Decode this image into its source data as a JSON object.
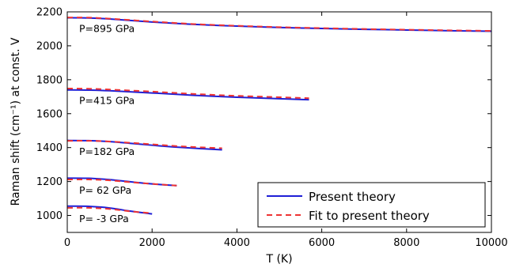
{
  "chart_data": {
    "type": "line",
    "xlabel": "T (K)",
    "ylabel": "Raman shift (cm⁻¹) at const. V",
    "xlim": [
      0,
      10000
    ],
    "ylim": [
      900,
      2200
    ],
    "xticks": [
      0,
      2000,
      4000,
      6000,
      8000,
      10000
    ],
    "yticks": [
      1000,
      1200,
      1400,
      1600,
      1800,
      2000,
      2200
    ],
    "grid": false,
    "legend_position": "lower-right",
    "series": [
      {
        "name": "Present theory",
        "color": "#1f1fd6",
        "style": "solid"
      },
      {
        "name": "Fit to present theory",
        "color": "#ee3333",
        "style": "dashed"
      }
    ],
    "curves": [
      {
        "label": "P=895 GPa",
        "theory": {
          "x": [
            0,
            500,
            1000,
            2000,
            3000,
            4000,
            5000,
            6000,
            7000,
            8000,
            9000,
            10000
          ],
          "y": [
            2165,
            2164,
            2158,
            2140,
            2126,
            2116,
            2108,
            2102,
            2097,
            2093,
            2089,
            2086
          ]
        },
        "fit": {
          "x": [
            0,
            500,
            1000,
            2000,
            3000,
            4000,
            5000,
            6000,
            7000,
            8000,
            9000,
            10000
          ],
          "y": [
            2167,
            2166,
            2160,
            2143,
            2128,
            2118,
            2110,
            2104,
            2099,
            2095,
            2091,
            2088
          ]
        }
      },
      {
        "label": "P=415 GPa",
        "theory": {
          "x": [
            0,
            500,
            1000,
            2000,
            3000,
            4000,
            5000,
            5700
          ],
          "y": [
            1740,
            1739,
            1735,
            1722,
            1708,
            1697,
            1688,
            1682
          ]
        },
        "fit": {
          "x": [
            0,
            500,
            1000,
            2000,
            3000,
            4000,
            5000,
            5700
          ],
          "y": [
            1748,
            1747,
            1742,
            1730,
            1716,
            1705,
            1697,
            1691
          ]
        }
      },
      {
        "label": "P=182 GPa",
        "theory": {
          "x": [
            0,
            500,
            1000,
            1500,
            2000,
            2500,
            3000,
            3650
          ],
          "y": [
            1442,
            1441,
            1435,
            1425,
            1414,
            1404,
            1396,
            1387
          ]
        },
        "fit": {
          "x": [
            0,
            500,
            1000,
            1500,
            2000,
            2500,
            3000,
            3650
          ],
          "y": [
            1440,
            1440,
            1436,
            1428,
            1419,
            1410,
            1403,
            1396
          ]
        }
      },
      {
        "label": "P= 62 GPa",
        "theory": {
          "x": [
            0,
            500,
            1000,
            1500,
            2000,
            2580
          ],
          "y": [
            1220,
            1219,
            1211,
            1198,
            1186,
            1176
          ]
        },
        "fit": {
          "x": [
            0,
            500,
            1000,
            1500,
            2000,
            2580
          ],
          "y": [
            1212,
            1212,
            1207,
            1196,
            1186,
            1176
          ]
        }
      },
      {
        "label": "P= -3 GPa",
        "theory": {
          "x": [
            0,
            500,
            1000,
            1500,
            2000
          ],
          "y": [
            1055,
            1054,
            1044,
            1025,
            1009
          ]
        },
        "fit": {
          "x": [
            0,
            500,
            1000,
            1500,
            2000
          ],
          "y": [
            1045,
            1045,
            1038,
            1024,
            1013
          ]
        }
      }
    ]
  }
}
